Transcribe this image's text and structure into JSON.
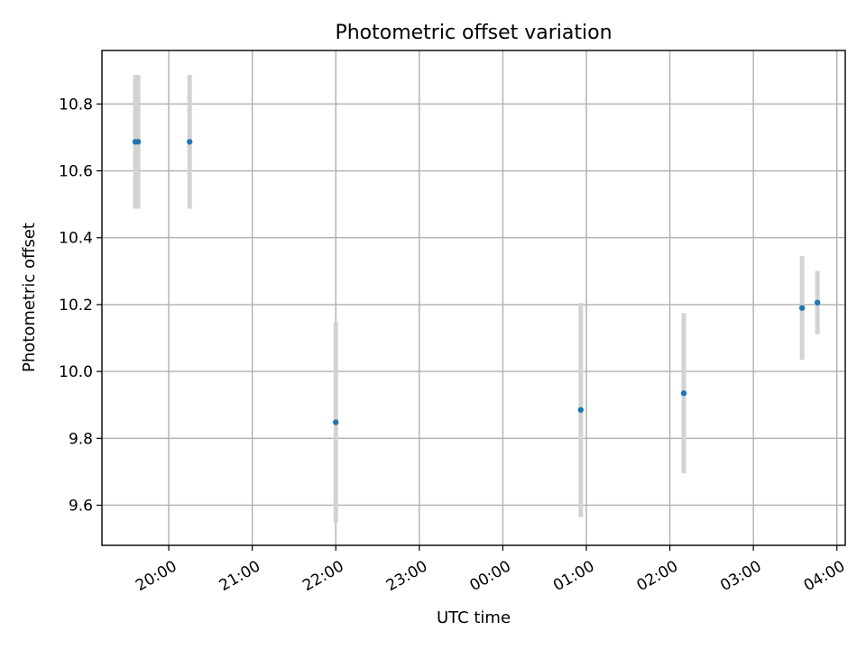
{
  "chart_data": {
    "type": "scatter",
    "title": "Photometric offset variation",
    "xlabel": "UTC time",
    "ylabel": "Photometric offset",
    "xlim": [
      "19:12",
      "04:06"
    ],
    "ylim": [
      9.48,
      10.96
    ],
    "x_ticks": [
      "20:00",
      "21:00",
      "22:00",
      "23:00",
      "00:00",
      "01:00",
      "02:00",
      "03:00",
      "04:00"
    ],
    "y_ticks": [
      9.6,
      9.8,
      10.0,
      10.2,
      10.4,
      10.6,
      10.8
    ],
    "grid": true,
    "series": [
      {
        "marker_color": "#1f77b4",
        "errorbar_color": "#d3d3d3",
        "points": [
          {
            "x": "19:36",
            "y": 10.687,
            "yerr": 0.2
          },
          {
            "x": "19:38",
            "y": 10.687,
            "yerr": 0.2
          },
          {
            "x": "20:15",
            "y": 10.687,
            "yerr": 0.2
          },
          {
            "x": "22:00",
            "y": 9.848,
            "yerr": 0.3
          },
          {
            "x": "00:56",
            "y": 9.885,
            "yerr": 0.32
          },
          {
            "x": "02:10",
            "y": 9.935,
            "yerr": 0.24
          },
          {
            "x": "03:35",
            "y": 10.19,
            "yerr": 0.155
          },
          {
            "x": "03:46",
            "y": 10.206,
            "yerr": 0.095
          }
        ]
      }
    ]
  }
}
